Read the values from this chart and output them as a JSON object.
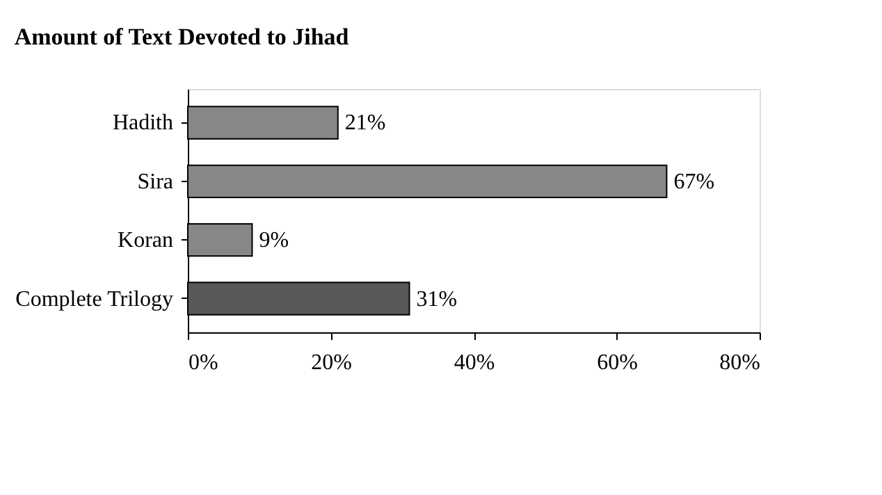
{
  "chart_data": {
    "type": "bar",
    "orientation": "horizontal",
    "title": "Amount of Text Devoted to Jihad",
    "categories": [
      "Hadith",
      "Sira",
      "Koran",
      "Complete Trilogy"
    ],
    "values": [
      21,
      67,
      9,
      31
    ],
    "colors": [
      "#87878a",
      "#87878a",
      "#87878a",
      "#58585a"
    ],
    "value_labels": [
      "21%",
      "67%",
      "9%",
      "31%"
    ],
    "xlim": [
      0,
      80
    ],
    "xticks": [
      {
        "value": 0,
        "label": "0%"
      },
      {
        "value": 20,
        "label": "20%"
      },
      {
        "value": 40,
        "label": "40%"
      },
      {
        "value": 60,
        "label": "60%"
      },
      {
        "value": 80,
        "label": "80%"
      }
    ],
    "grid": false
  }
}
